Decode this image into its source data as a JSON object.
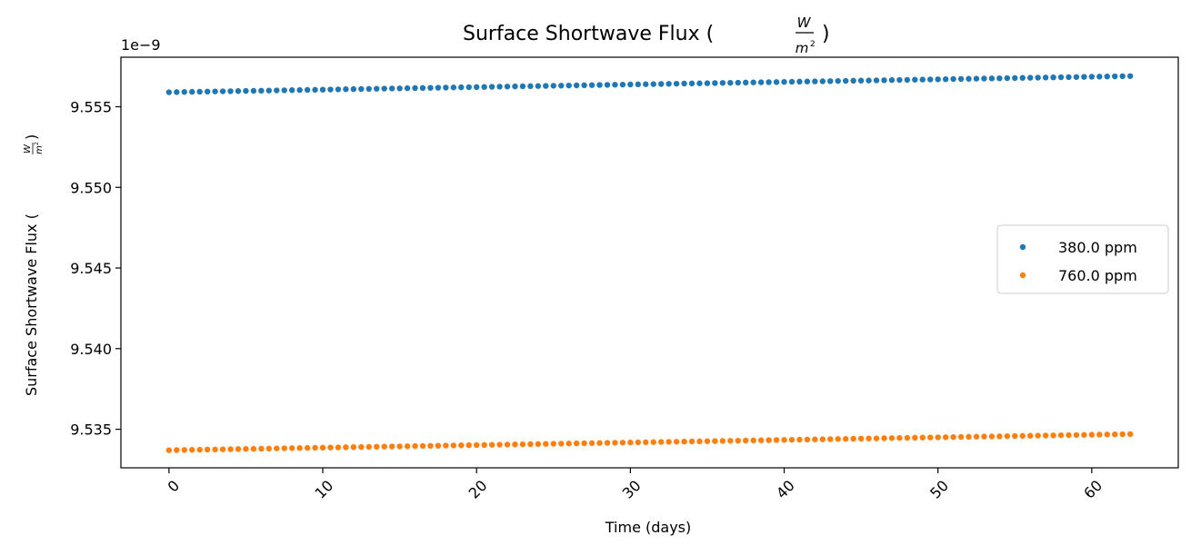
{
  "chart_data": {
    "type": "scatter",
    "title_text": "Surface Shortwave Flux (",
    "title_frac_num": "W",
    "title_frac_den": "m",
    "title_frac_sup": "2",
    "title_close": ")",
    "xlabel": "Time (days)",
    "ylabel_text": "Surface Shortwave Flux (",
    "ylabel_frac_num": "W",
    "ylabel_frac_den": "m",
    "ylabel_frac_sup": "2",
    "ylabel_close": ")",
    "offset_text": "1e−9",
    "x_ticks": [
      0,
      10,
      20,
      30,
      40,
      50,
      60
    ],
    "x_tick_labels": [
      "0",
      "10",
      "20",
      "30",
      "40",
      "50",
      "60"
    ],
    "y_ticks": [
      9.535,
      9.54,
      9.545,
      9.55,
      9.555
    ],
    "y_tick_labels": [
      "9.535",
      "9.540",
      "9.545",
      "9.550",
      "9.555"
    ],
    "xlim": [
      -3.125,
      65.625
    ],
    "ylim": [
      9.53261,
      9.55807
    ],
    "legend_position": "center-right",
    "grid": false,
    "x_range": [
      0,
      62.5
    ],
    "x_step": 0.5,
    "series": [
      {
        "name": "380.0 ppm",
        "color": "#1f77b4",
        "y_start": 9.5559,
        "y_end": 9.5569
      },
      {
        "name": "760.0 ppm",
        "color": "#ff7f0e",
        "y_start": 9.5337,
        "y_end": 9.5347
      }
    ]
  }
}
